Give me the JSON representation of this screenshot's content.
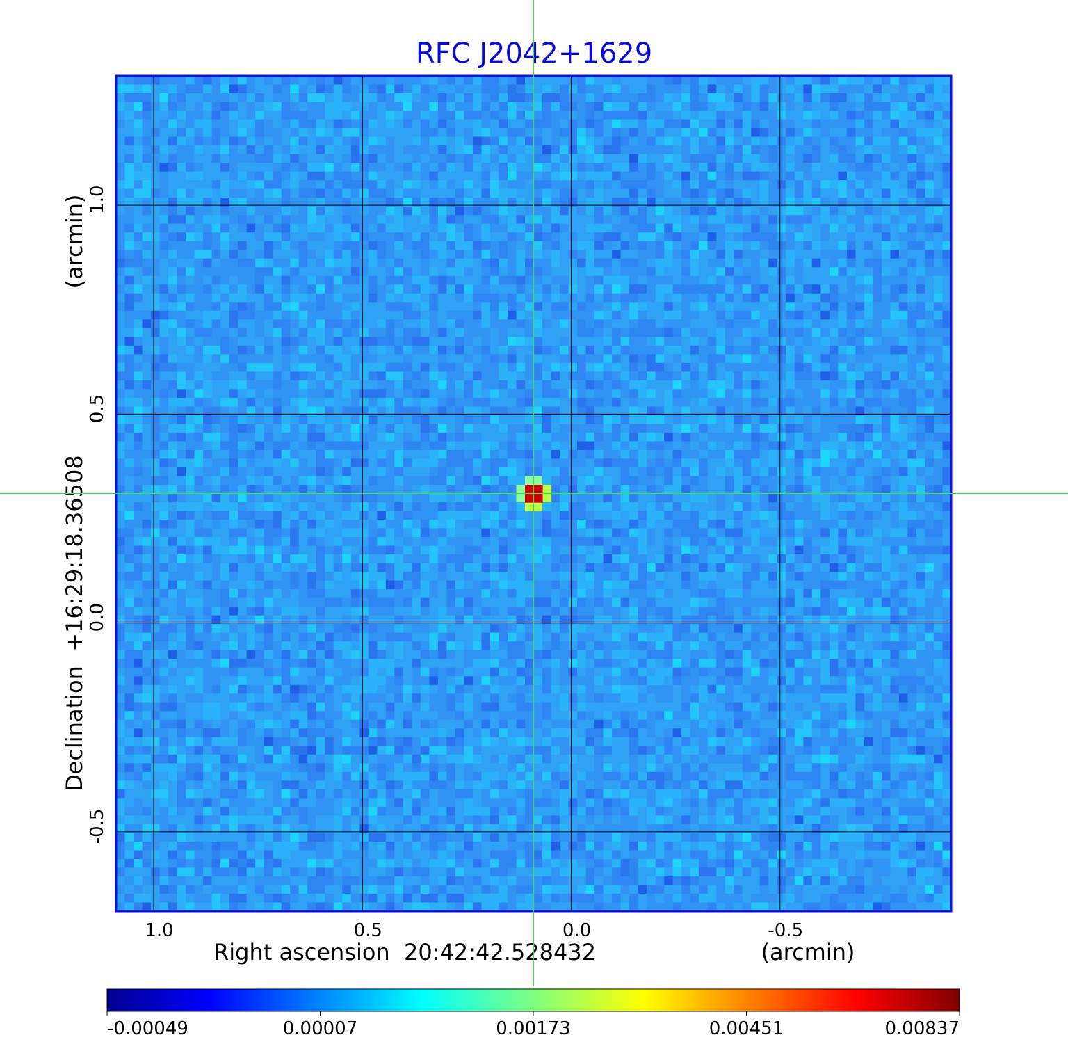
{
  "chart_data": {
    "type": "heatmap",
    "title": "RFC J2042+1629",
    "xlabel": "Right ascension  20:42:42.528432",
    "xunit": "(arcmin)",
    "ylabel": "Declination  +16:29:18.36508",
    "yunit": "(arcmin)",
    "xlim": [
      1.09,
      -0.91
    ],
    "ylim": [
      -0.69,
      1.31
    ],
    "x_ticks": [
      {
        "value": 1.0,
        "label": "1.0"
      },
      {
        "value": 0.5,
        "label": "0.5"
      },
      {
        "value": 0.0,
        "label": "0.0"
      },
      {
        "value": -0.5,
        "label": "-0.5"
      }
    ],
    "y_ticks": [
      {
        "value": 1.0,
        "label": "1.0"
      },
      {
        "value": 0.5,
        "label": "0.5"
      },
      {
        "value": 0.0,
        "label": "0.0"
      },
      {
        "value": -0.5,
        "label": "-0.5"
      }
    ],
    "grid": true,
    "source_peak": {
      "x": 0.09,
      "y": 0.31
    },
    "crosshair": {
      "x": 0.09,
      "y": 0.31
    },
    "colorbar": {
      "ticks": [
        "-0.00049",
        "0.00007",
        "0.00173",
        "0.00451",
        "0.00837"
      ],
      "colormap": "jet"
    }
  }
}
